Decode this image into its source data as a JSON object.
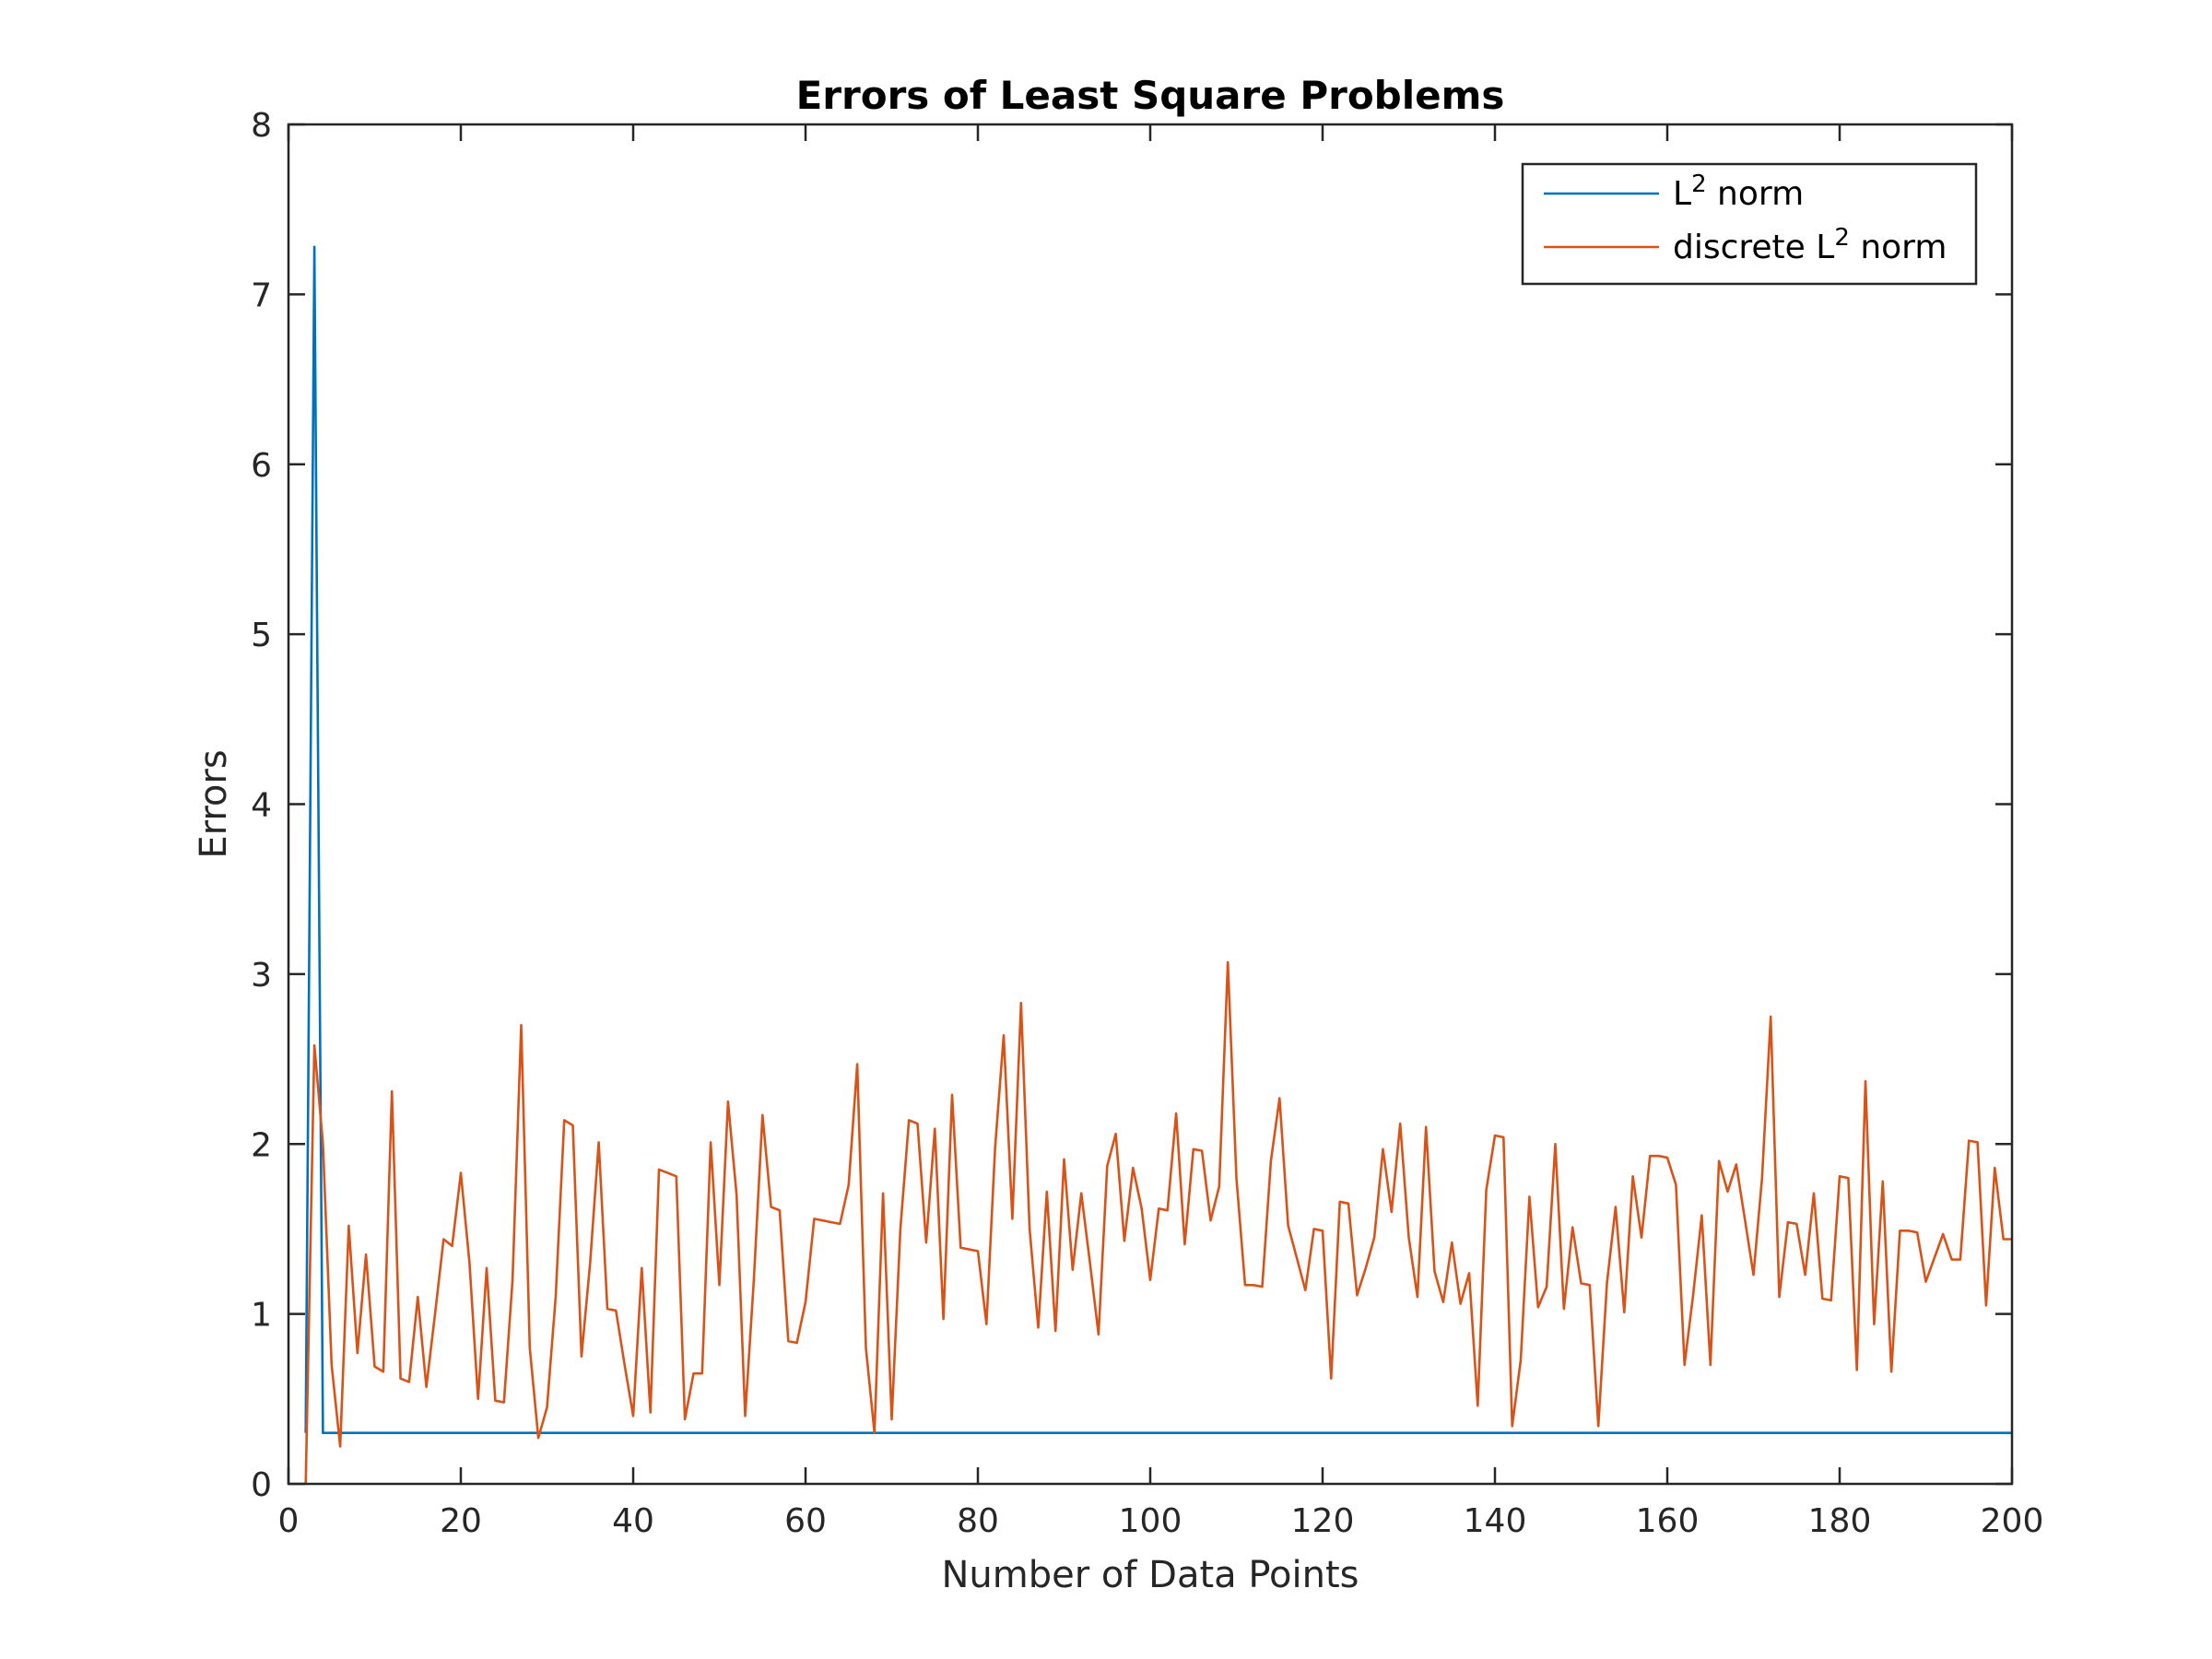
{
  "chart_data": {
    "type": "line",
    "title": "Errors of Least Square Problems",
    "xlabel": "Number of Data Points",
    "ylabel": "Errors",
    "xlim": [
      0,
      200
    ],
    "ylim": [
      0,
      8
    ],
    "xticks": [
      0,
      20,
      40,
      60,
      80,
      100,
      120,
      140,
      160,
      180,
      200
    ],
    "yticks": [
      0,
      1,
      2,
      3,
      4,
      5,
      6,
      7,
      8
    ],
    "grid": false,
    "legend_position": "top-right",
    "series": [
      {
        "name": "L2 norm",
        "legend_base": "L",
        "legend_sup": "2",
        "legend_rest": " norm",
        "color": "#0072BD",
        "x": [
          2,
          3,
          4,
          200
        ],
        "y": [
          0.3,
          7.28,
          0.3,
          0.3
        ]
      },
      {
        "name": "discrete L2 norm",
        "legend_base": "discrete L",
        "legend_sup": "2",
        "legend_rest": " norm",
        "color": "#D95319",
        "x": [
          2,
          3,
          4,
          5,
          6,
          7,
          8,
          9,
          10,
          11,
          12,
          13,
          14,
          15,
          16,
          17,
          18,
          19,
          20,
          21,
          22,
          23,
          24,
          25,
          26,
          27,
          28,
          29,
          30,
          31,
          32,
          33,
          34,
          35,
          36,
          37,
          38,
          39,
          40,
          41,
          42,
          43,
          44,
          45,
          46,
          47,
          48,
          49,
          50,
          51,
          52,
          53,
          54,
          55,
          56,
          57,
          58,
          59,
          60,
          61,
          62,
          63,
          64,
          65,
          66,
          67,
          68,
          69,
          70,
          71,
          72,
          73,
          74,
          75,
          76,
          77,
          78,
          79,
          80,
          81,
          82,
          83,
          84,
          85,
          86,
          87,
          88,
          89,
          90,
          91,
          92,
          93,
          94,
          95,
          96,
          97,
          98,
          99,
          100,
          101,
          102,
          103,
          104,
          105,
          106,
          107,
          108,
          109,
          110,
          111,
          112,
          113,
          114,
          115,
          116,
          117,
          118,
          119,
          120,
          121,
          122,
          123,
          124,
          125,
          126,
          127,
          128,
          129,
          130,
          131,
          132,
          133,
          134,
          135,
          136,
          137,
          138,
          139,
          140,
          141,
          142,
          143,
          144,
          145,
          146,
          147,
          148,
          149,
          150,
          151,
          152,
          153,
          154,
          155,
          156,
          157,
          158,
          159,
          160,
          161,
          162,
          163,
          164,
          165,
          166,
          167,
          168,
          169,
          170,
          171,
          172,
          173,
          174,
          175,
          176,
          177,
          178,
          179,
          180,
          181,
          182,
          183,
          184,
          185,
          186,
          187,
          188,
          189,
          190,
          191,
          192,
          193,
          194,
          195,
          196,
          197,
          198,
          199,
          200
        ],
        "y": [
          0.0,
          2.58,
          2.0,
          0.7,
          0.22,
          1.52,
          0.77,
          1.35,
          0.69,
          0.66,
          2.31,
          0.62,
          0.6,
          1.1,
          0.57,
          1.0,
          1.44,
          1.4,
          1.83,
          1.3,
          0.5,
          1.27,
          0.49,
          0.48,
          1.2,
          2.7,
          0.8,
          0.27,
          0.45,
          1.1,
          2.14,
          2.11,
          0.75,
          1.3,
          2.01,
          1.03,
          1.02,
          0.7,
          0.4,
          1.27,
          0.42,
          1.85,
          1.83,
          1.81,
          0.38,
          0.65,
          0.65,
          2.01,
          1.17,
          2.25,
          1.7,
          0.4,
          1.2,
          2.17,
          1.63,
          1.61,
          0.84,
          0.83,
          1.07,
          1.56,
          1.55,
          1.54,
          1.53,
          1.76,
          2.47,
          0.8,
          0.3,
          1.71,
          0.38,
          1.5,
          2.14,
          2.12,
          1.42,
          2.09,
          0.97,
          2.29,
          1.39,
          1.38,
          1.37,
          0.94,
          1.98,
          2.64,
          1.56,
          2.83,
          1.5,
          0.92,
          1.72,
          0.9,
          1.91,
          1.26,
          1.71,
          1.3,
          0.88,
          1.87,
          2.06,
          1.43,
          1.86,
          1.62,
          1.2,
          1.62,
          1.61,
          2.18,
          1.41,
          1.97,
          1.96,
          1.55,
          1.75,
          3.07,
          1.8,
          1.17,
          1.17,
          1.16,
          1.9,
          2.27,
          1.52,
          1.33,
          1.14,
          1.5,
          1.49,
          0.62,
          1.66,
          1.65,
          1.11,
          1.27,
          1.45,
          1.97,
          1.6,
          2.12,
          1.45,
          1.1,
          2.1,
          1.25,
          1.07,
          1.42,
          1.06,
          1.24,
          0.46,
          1.73,
          2.05,
          2.04,
          0.34,
          0.73,
          1.69,
          1.04,
          1.16,
          2.0,
          1.03,
          1.51,
          1.18,
          1.17,
          0.34,
          1.18,
          1.63,
          1.01,
          1.81,
          1.45,
          1.93,
          1.93,
          1.92,
          1.76,
          0.7,
          1.11,
          1.58,
          0.7,
          1.9,
          1.72,
          1.88,
          1.56,
          1.23,
          1.8,
          2.75,
          1.1,
          1.54,
          1.53,
          1.23,
          1.71,
          1.09,
          1.08,
          1.81,
          1.8,
          0.67,
          2.37,
          0.94,
          1.78,
          0.66,
          1.49,
          1.49,
          1.48,
          1.19,
          1.33,
          1.47,
          1.32,
          1.32,
          2.02,
          2.01,
          1.05,
          1.86,
          1.44,
          1.44
        ]
      }
    ]
  }
}
